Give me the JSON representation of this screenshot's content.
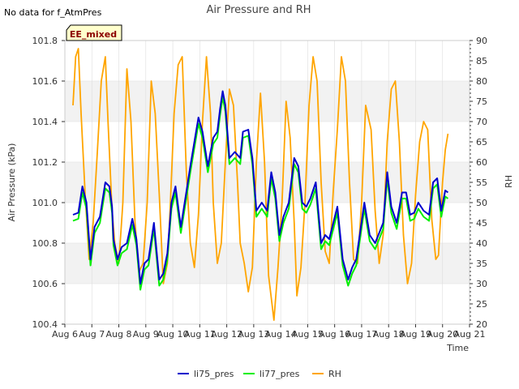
{
  "chart_data": {
    "type": "line",
    "title": "Air Pressure and RH",
    "note": "No data for f_AtmPres",
    "badge": "EE_mixed",
    "xlabel": "Time",
    "ylabel": "Air Pressure (kPa)",
    "y2label": "RH",
    "x_tick_labels": [
      "Aug 6",
      "Aug 7",
      "Aug 8",
      "Aug 9",
      "Aug 10",
      "Aug 11",
      "Aug 12",
      "Aug 13",
      "Aug 14",
      "Aug 15",
      "Aug 16",
      "Aug 17",
      "Aug 18",
      "Aug 19",
      "Aug 20",
      "Aug 21"
    ],
    "xlim": [
      6,
      21
    ],
    "ylim": [
      100.4,
      101.8
    ],
    "y_ticks": [
      100.4,
      100.6,
      100.8,
      101.0,
      101.2,
      101.4,
      101.6,
      101.8
    ],
    "y2lim": [
      20,
      90
    ],
    "y2_ticks": [
      20,
      25,
      30,
      35,
      40,
      45,
      50,
      55,
      60,
      65,
      70,
      75,
      80,
      85,
      90
    ],
    "legend_position": "bottom-center",
    "colors": {
      "li75_pres": "#0000cc",
      "li77_pres": "#00ee00",
      "RH": "#ffa500",
      "band": "#f2f2f2",
      "grid": "#dddddd",
      "badge_bg": "#ffffcc",
      "badge_text": "#8b0000"
    },
    "series": [
      {
        "name": "li75_pres",
        "axis": "left",
        "x": [
          6.3,
          6.5,
          6.65,
          6.8,
          6.95,
          7.1,
          7.3,
          7.5,
          7.65,
          7.75,
          7.8,
          7.95,
          8.1,
          8.3,
          8.5,
          8.65,
          8.8,
          8.95,
          9.1,
          9.3,
          9.5,
          9.65,
          9.8,
          9.95,
          10.1,
          10.3,
          10.5,
          10.65,
          10.8,
          10.95,
          11.1,
          11.3,
          11.5,
          11.65,
          11.75,
          11.85,
          11.95,
          12.1,
          12.3,
          12.5,
          12.6,
          12.8,
          12.95,
          13.1,
          13.3,
          13.5,
          13.65,
          13.8,
          13.95,
          14.1,
          14.3,
          14.5,
          14.65,
          14.8,
          14.95,
          15.1,
          15.3,
          15.5,
          15.65,
          15.8,
          15.95,
          16.1,
          16.3,
          16.5,
          16.65,
          16.8,
          16.95,
          17.1,
          17.3,
          17.5,
          17.65,
          17.8,
          17.95,
          18.1,
          18.3,
          18.5,
          18.65,
          18.8,
          18.95,
          19.1,
          19.3,
          19.5,
          19.65,
          19.8,
          19.95,
          20.1,
          20.2
        ],
        "values": [
          100.94,
          100.95,
          101.08,
          101.0,
          100.72,
          100.88,
          100.93,
          101.1,
          101.08,
          100.98,
          100.82,
          100.72,
          100.78,
          100.8,
          100.92,
          100.82,
          100.6,
          100.7,
          100.72,
          100.9,
          100.62,
          100.65,
          100.75,
          101.0,
          101.08,
          100.88,
          101.05,
          101.18,
          101.3,
          101.42,
          101.35,
          101.18,
          101.32,
          101.35,
          101.46,
          101.55,
          101.48,
          101.22,
          101.25,
          101.22,
          101.35,
          101.36,
          101.22,
          100.96,
          101.0,
          100.96,
          101.15,
          101.05,
          100.84,
          100.93,
          101.0,
          101.22,
          101.18,
          101.0,
          100.98,
          101.02,
          101.1,
          100.8,
          100.84,
          100.82,
          100.9,
          100.98,
          100.72,
          100.62,
          100.68,
          100.72,
          100.86,
          101.0,
          100.84,
          100.8,
          100.85,
          100.9,
          101.15,
          100.98,
          100.9,
          101.05,
          101.05,
          100.94,
          100.95,
          101.0,
          100.96,
          100.94,
          101.1,
          101.12,
          100.96,
          101.06,
          101.05
        ]
      },
      {
        "name": "li77_pres",
        "axis": "left",
        "x": [
          6.3,
          6.5,
          6.65,
          6.8,
          6.95,
          7.1,
          7.3,
          7.5,
          7.65,
          7.75,
          7.8,
          7.95,
          8.1,
          8.3,
          8.5,
          8.65,
          8.8,
          8.95,
          9.1,
          9.3,
          9.5,
          9.65,
          9.8,
          9.95,
          10.1,
          10.3,
          10.5,
          10.65,
          10.8,
          10.95,
          11.1,
          11.3,
          11.5,
          11.65,
          11.75,
          11.85,
          11.95,
          12.1,
          12.3,
          12.5,
          12.6,
          12.8,
          12.95,
          13.1,
          13.3,
          13.5,
          13.65,
          13.8,
          13.95,
          14.1,
          14.3,
          14.5,
          14.65,
          14.8,
          14.95,
          15.1,
          15.3,
          15.5,
          15.65,
          15.8,
          15.95,
          16.1,
          16.3,
          16.5,
          16.65,
          16.8,
          16.95,
          17.1,
          17.3,
          17.5,
          17.65,
          17.8,
          17.95,
          18.1,
          18.3,
          18.5,
          18.65,
          18.8,
          18.95,
          19.1,
          19.3,
          19.5,
          19.65,
          19.8,
          19.95,
          20.1,
          20.2
        ],
        "values": [
          100.91,
          100.92,
          101.05,
          100.97,
          100.69,
          100.85,
          100.9,
          101.07,
          101.05,
          100.95,
          100.79,
          100.69,
          100.75,
          100.77,
          100.89,
          100.79,
          100.57,
          100.67,
          100.69,
          100.87,
          100.59,
          100.62,
          100.72,
          100.97,
          101.05,
          100.85,
          101.02,
          101.15,
          101.27,
          101.39,
          101.32,
          101.15,
          101.29,
          101.32,
          101.43,
          101.52,
          101.45,
          101.19,
          101.22,
          101.19,
          101.32,
          101.33,
          101.19,
          100.93,
          100.97,
          100.93,
          101.12,
          101.02,
          100.81,
          100.9,
          100.97,
          101.19,
          101.15,
          100.97,
          100.95,
          100.99,
          101.07,
          100.77,
          100.81,
          100.79,
          100.87,
          100.95,
          100.69,
          100.59,
          100.65,
          100.69,
          100.83,
          100.97,
          100.81,
          100.77,
          100.82,
          100.87,
          101.12,
          100.95,
          100.87,
          101.02,
          101.02,
          100.91,
          100.92,
          100.97,
          100.93,
          100.91,
          101.07,
          101.09,
          100.93,
          101.03,
          101.02
        ]
      },
      {
        "name": "RH",
        "axis": "right",
        "x": [
          6.3,
          6.4,
          6.5,
          6.6,
          6.75,
          6.9,
          7.05,
          7.2,
          7.35,
          7.5,
          7.6,
          7.75,
          7.85,
          8.0,
          8.15,
          8.3,
          8.45,
          8.6,
          8.75,
          8.9,
          9.05,
          9.2,
          9.35,
          9.5,
          9.65,
          9.8,
          9.9,
          10.05,
          10.2,
          10.35,
          10.5,
          10.65,
          10.8,
          10.95,
          11.1,
          11.25,
          11.4,
          11.5,
          11.65,
          11.8,
          11.95,
          12.1,
          12.25,
          12.4,
          12.5,
          12.65,
          12.8,
          12.95,
          13.1,
          13.25,
          13.4,
          13.55,
          13.75,
          13.9,
          14.05,
          14.2,
          14.35,
          14.5,
          14.6,
          14.75,
          14.9,
          15.05,
          15.2,
          15.35,
          15.5,
          15.65,
          15.8,
          15.95,
          16.1,
          16.25,
          16.4,
          16.55,
          16.7,
          16.85,
          17.0,
          17.15,
          17.35,
          17.5,
          17.65,
          17.8,
          17.95,
          18.1,
          18.25,
          18.4,
          18.55,
          18.7,
          18.85,
          19.0,
          19.15,
          19.3,
          19.45,
          19.6,
          19.75,
          19.85,
          20.0,
          20.1,
          20.2
        ],
        "values": [
          74,
          86,
          88,
          72,
          52,
          36,
          45,
          62,
          80,
          86,
          70,
          48,
          40,
          35,
          50,
          83,
          70,
          45,
          33,
          35,
          50,
          80,
          72,
          52,
          30,
          35,
          48,
          72,
          84,
          86,
          58,
          40,
          34,
          47,
          70,
          86,
          72,
          50,
          35,
          40,
          60,
          78,
          74,
          55,
          40,
          35,
          28,
          34,
          60,
          77,
          60,
          32,
          21,
          34,
          50,
          75,
          66,
          45,
          27,
          34,
          50,
          74,
          86,
          80,
          55,
          38,
          35,
          53,
          68,
          86,
          80,
          55,
          36,
          35,
          50,
          74,
          68,
          48,
          35,
          42,
          65,
          78,
          80,
          65,
          42,
          30,
          35,
          52,
          65,
          70,
          68,
          46,
          36,
          37,
          55,
          63,
          67
        ]
      }
    ],
    "legend": [
      "li75_pres",
      "li77_pres",
      "RH"
    ]
  }
}
